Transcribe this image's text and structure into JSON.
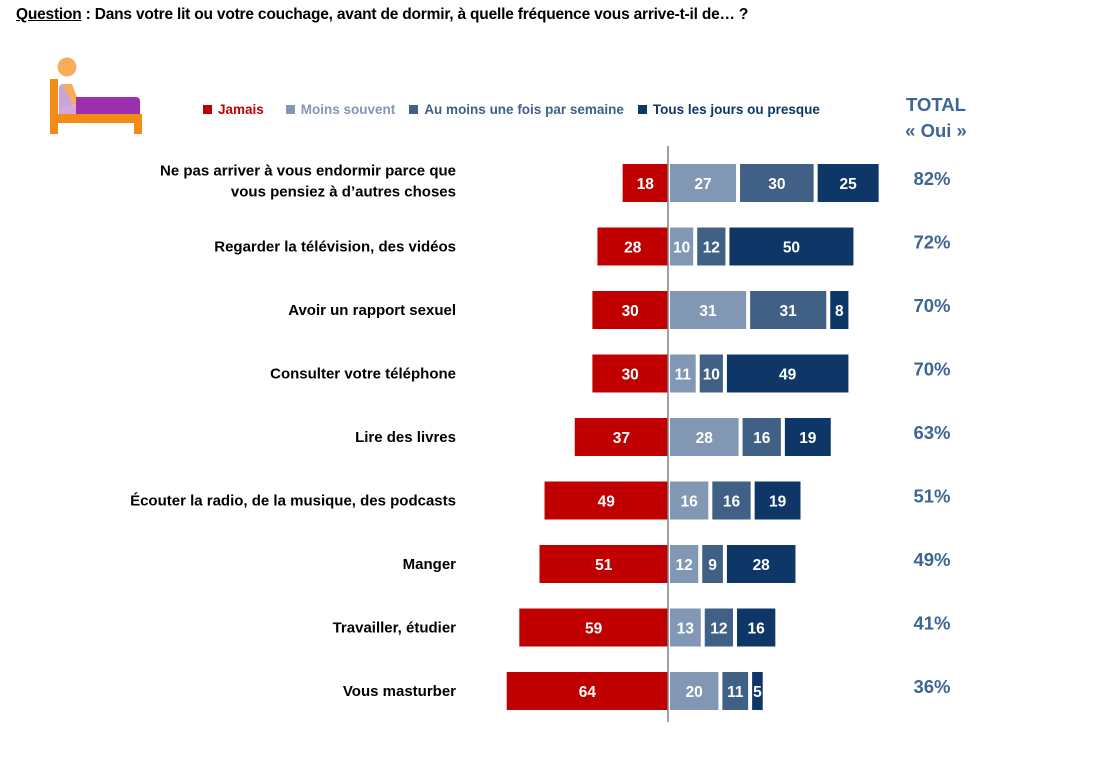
{
  "question": {
    "key": "Question",
    "text": " : Dans votre lit ou votre couchage, avant de dormir, à quelle fréquence vous arrive-t-il de… ?"
  },
  "icon": "bed-person-icon",
  "total_header": {
    "line1": "TOTAL",
    "line2": "« Oui »"
  },
  "colors": {
    "jamais": "#c00000",
    "moins_souvent": "#8197b3",
    "au_moins_une_fois": "#416085",
    "tous_les_jours": "#0e3768",
    "total_text": "#3e6594",
    "axis": "#808080"
  },
  "chart_data": {
    "type": "bar",
    "orientation": "horizontal-diverging-stacked",
    "title": "Dans votre lit ou votre couchage, avant de dormir, à quelle fréquence vous arrive-t-il de… ?",
    "xlabel": "",
    "ylabel": "",
    "grid": false,
    "legend_position": "top",
    "unit": "%",
    "categories": [
      "Ne pas arriver à vous endormir parce que\nvous pensiez à d’autres choses",
      "Regarder la télévision, des vidéos",
      "Avoir un rapport sexuel",
      "Consulter votre téléphone",
      "Lire des livres",
      "Écouter la radio, de la musique, des podcasts",
      "Manger",
      "Travailler, étudier",
      "Vous masturber"
    ],
    "series": [
      {
        "name": "Jamais",
        "key": "jamais",
        "side": "negative",
        "values": [
          18,
          28,
          30,
          30,
          37,
          49,
          51,
          59,
          64
        ]
      },
      {
        "name": "Moins souvent",
        "key": "moins_souvent",
        "side": "positive",
        "values": [
          27,
          10,
          31,
          11,
          28,
          16,
          12,
          13,
          20
        ]
      },
      {
        "name": "Au moins une fois par semaine",
        "key": "au_moins_une_fois",
        "side": "positive",
        "values": [
          30,
          12,
          31,
          10,
          16,
          16,
          9,
          12,
          11
        ]
      },
      {
        "name": "Tous les jours ou presque",
        "key": "tous_les_jours",
        "side": "positive",
        "values": [
          25,
          50,
          8,
          49,
          19,
          19,
          28,
          16,
          5
        ]
      }
    ],
    "totals_label": "TOTAL « Oui »",
    "totals": [
      "82%",
      "72%",
      "70%",
      "70%",
      "63%",
      "51%",
      "49%",
      "41%",
      "36%"
    ]
  }
}
